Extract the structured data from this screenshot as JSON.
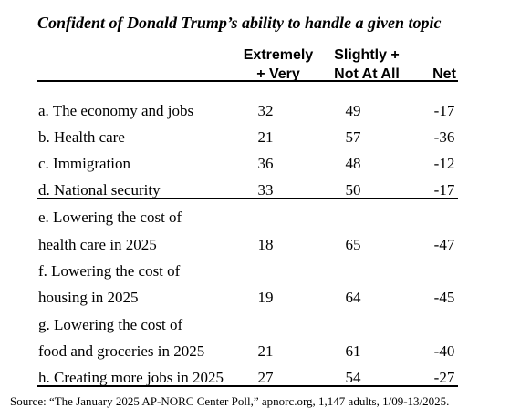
{
  "title": "Confident of Donald Trump’s ability to handle a given topic",
  "headers": {
    "col1_line1": "Extremely",
    "col1_line2": "+ Very",
    "col2_line1": "Slightly +",
    "col2_line2": "Not At All",
    "col3": "Net"
  },
  "rows": [
    {
      "label": "a. The economy and jobs",
      "v1": "32",
      "v2": "49",
      "net": "-17"
    },
    {
      "label": "b. Health care",
      "v1": "21",
      "v2": "57",
      "net": "-36"
    },
    {
      "label": "c. Immigration",
      "v1": "36",
      "v2": "48",
      "net": "-12"
    },
    {
      "label": "d. National security",
      "v1": "33",
      "v2": "50",
      "net": "-17"
    },
    {
      "label_line1": "e. Lowering the cost of",
      "label_line2": "health care in 2025",
      "v1": "18",
      "v2": "65",
      "net": "-47"
    },
    {
      "label_line1": "f. Lowering the cost of",
      "label_line2": "housing in 2025",
      "v1": "19",
      "v2": "64",
      "net": "-45"
    },
    {
      "label_line1": "g. Lowering the cost of",
      "label_line2": "food and groceries in 2025",
      "v1": "21",
      "v2": "61",
      "net": "-40"
    },
    {
      "label": "h. Creating more jobs in 2025",
      "v1": "27",
      "v2": "54",
      "net": "-27"
    }
  ],
  "source": "Source: “The January 2025 AP-NORC Center Poll,” apnorc.org, 1,147 adults, 1/09-13/2025."
}
